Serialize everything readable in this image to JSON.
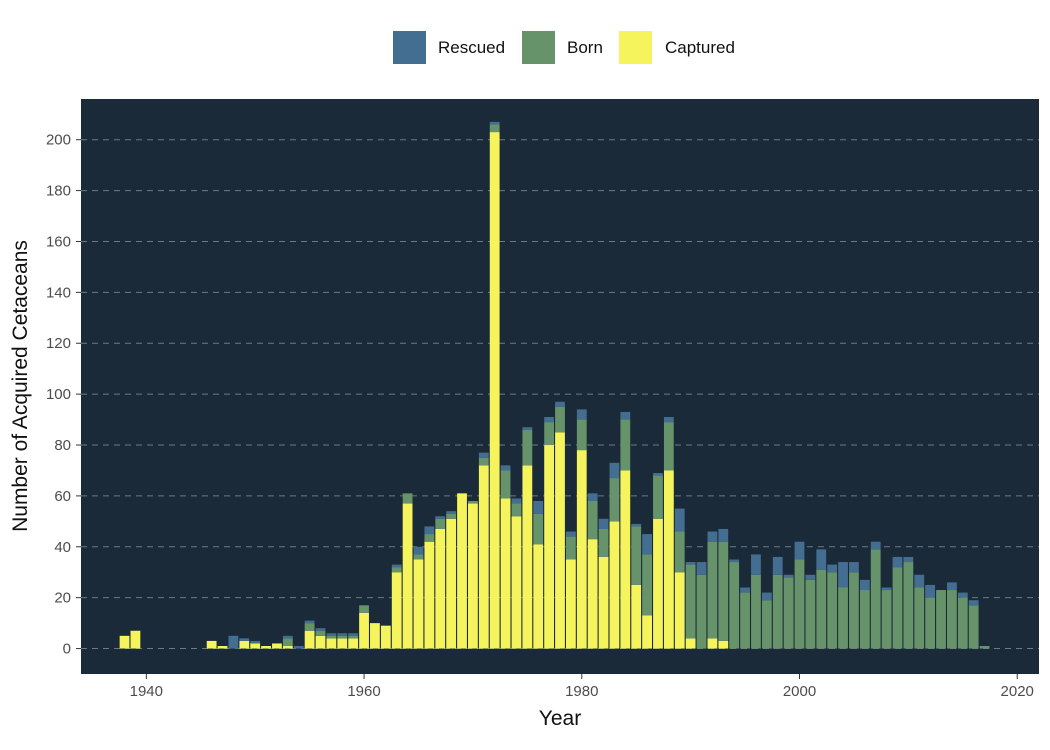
{
  "chart_data": {
    "type": "bar",
    "stacked": true,
    "xlabel": "Year",
    "ylabel": "Number of Acquired Cetaceans",
    "xlim": [
      1934,
      2022
    ],
    "ylim": [
      -10,
      216
    ],
    "x_ticks": [
      1940,
      1960,
      1980,
      2000,
      2020
    ],
    "y_ticks": [
      0,
      20,
      40,
      60,
      80,
      100,
      120,
      140,
      160,
      180,
      200
    ],
    "legend_position": "top",
    "grid": "horizontal dashed major lines",
    "colors": {
      "panel_background": "#1a2a38",
      "gridline": "#6b7a86",
      "Rescued": "#446e91",
      "Born": "#67936a",
      "Captured": "#f6f45c"
    },
    "years": [
      1938,
      1939,
      1946,
      1947,
      1948,
      1949,
      1950,
      1951,
      1952,
      1953,
      1954,
      1955,
      1956,
      1957,
      1958,
      1959,
      1960,
      1961,
      1962,
      1963,
      1964,
      1965,
      1966,
      1967,
      1968,
      1969,
      1970,
      1971,
      1972,
      1973,
      1974,
      1975,
      1976,
      1977,
      1978,
      1979,
      1980,
      1981,
      1982,
      1983,
      1984,
      1985,
      1986,
      1987,
      1988,
      1989,
      1990,
      1991,
      1992,
      1993,
      1994,
      1995,
      1996,
      1997,
      1998,
      1999,
      2000,
      2001,
      2002,
      2003,
      2004,
      2005,
      2006,
      2007,
      2008,
      2009,
      2010,
      2011,
      2012,
      2013,
      2014,
      2015,
      2016,
      2017
    ],
    "series": [
      {
        "name": "Captured",
        "values": [
          5,
          7,
          3,
          1,
          0,
          3,
          2,
          1,
          2,
          1,
          0,
          7,
          5,
          4,
          4,
          4,
          14,
          10,
          9,
          30,
          57,
          35,
          42,
          47,
          51,
          61,
          57,
          72,
          203,
          59,
          52,
          72,
          41,
          80,
          85,
          35,
          78,
          43,
          36,
          50,
          70,
          25,
          13,
          51,
          70,
          30,
          4,
          0,
          4,
          3,
          0,
          0,
          0,
          0,
          0,
          0,
          0,
          0,
          0,
          0,
          0,
          0,
          0,
          0,
          0,
          0,
          0,
          0,
          0,
          0,
          0,
          0,
          0,
          0
        ]
      },
      {
        "name": "Born",
        "values": [
          0,
          0,
          0,
          0,
          0,
          0,
          0,
          0,
          0,
          3,
          0,
          3,
          2,
          1,
          1,
          1,
          3,
          0,
          0,
          2,
          4,
          2,
          3,
          4,
          2,
          0,
          1,
          3,
          3,
          11,
          5,
          14,
          12,
          9,
          10,
          9,
          12,
          15,
          11,
          17,
          20,
          23,
          24,
          17,
          19,
          16,
          29,
          29,
          38,
          39,
          34,
          22,
          29,
          19,
          29,
          28,
          35,
          27,
          31,
          30,
          24,
          30,
          23,
          39,
          23,
          32,
          34,
          24,
          20,
          23,
          23,
          20,
          17,
          1
        ]
      },
      {
        "name": "Rescued",
        "values": [
          0,
          0,
          0,
          0,
          5,
          1,
          1,
          0,
          0,
          1,
          1,
          1,
          1,
          1,
          1,
          1,
          0,
          0,
          0,
          1,
          0,
          3,
          3,
          1,
          1,
          0,
          0,
          2,
          1,
          2,
          2,
          1,
          5,
          2,
          2,
          2,
          4,
          3,
          4,
          6,
          3,
          1,
          8,
          1,
          2,
          9,
          1,
          5,
          4,
          5,
          1,
          2,
          8,
          3,
          7,
          1,
          7,
          2,
          8,
          3,
          10,
          4,
          4,
          3,
          1,
          4,
          2,
          5,
          5,
          0,
          3,
          2,
          2,
          0
        ]
      }
    ]
  }
}
